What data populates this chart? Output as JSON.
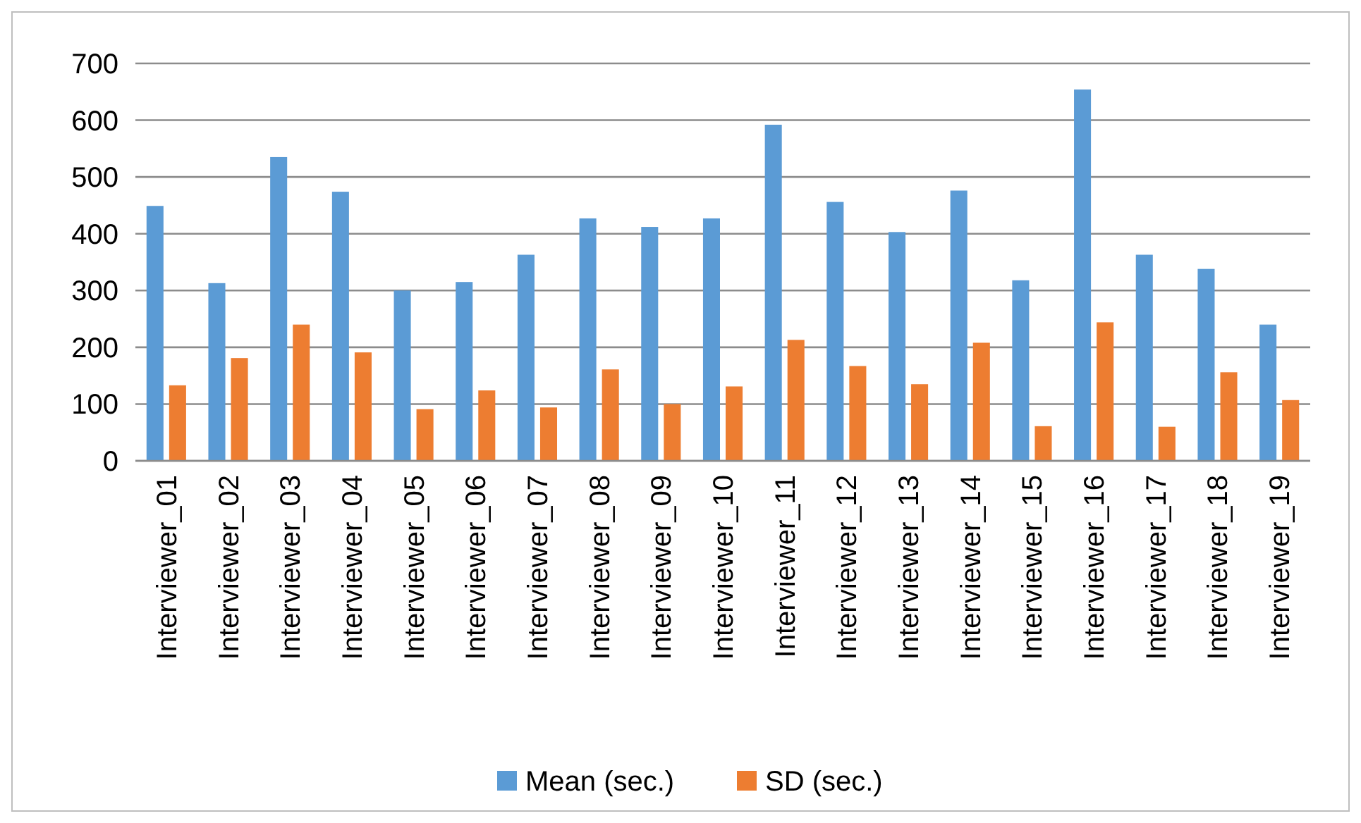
{
  "chart_data": {
    "type": "bar",
    "categories": [
      "Interviewer_01",
      "Interviewer_02",
      "Interviewer_03",
      "Interviewer_04",
      "Interviewer_05",
      "Interviewer_06",
      "Interviewer_07",
      "Interviewer_08",
      "Interviewer_09",
      "Interviewer_10",
      "Interviewer_11",
      "Interviewer_12",
      "Interviewer_13",
      "Interviewer_14",
      "Interviewer_15",
      "Interviewer_16",
      "Interviewer_17",
      "Interviewer_18",
      "Interviewer_19"
    ],
    "series": [
      {
        "name": "Mean (sec.)",
        "color": "#5b9bd5",
        "values": [
          449,
          313,
          535,
          474,
          300,
          315,
          363,
          427,
          412,
          427,
          592,
          456,
          403,
          476,
          318,
          654,
          363,
          338,
          240
        ]
      },
      {
        "name": "SD (sec.)",
        "color": "#ed7d31",
        "values": [
          133,
          181,
          240,
          191,
          91,
          124,
          94,
          161,
          100,
          131,
          213,
          167,
          135,
          208,
          61,
          244,
          60,
          156,
          107
        ]
      }
    ],
    "ylim": [
      0,
      700
    ],
    "yticks": [
      0,
      100,
      200,
      300,
      400,
      500,
      600,
      700
    ],
    "grid": "y",
    "legend": "bottom"
  }
}
